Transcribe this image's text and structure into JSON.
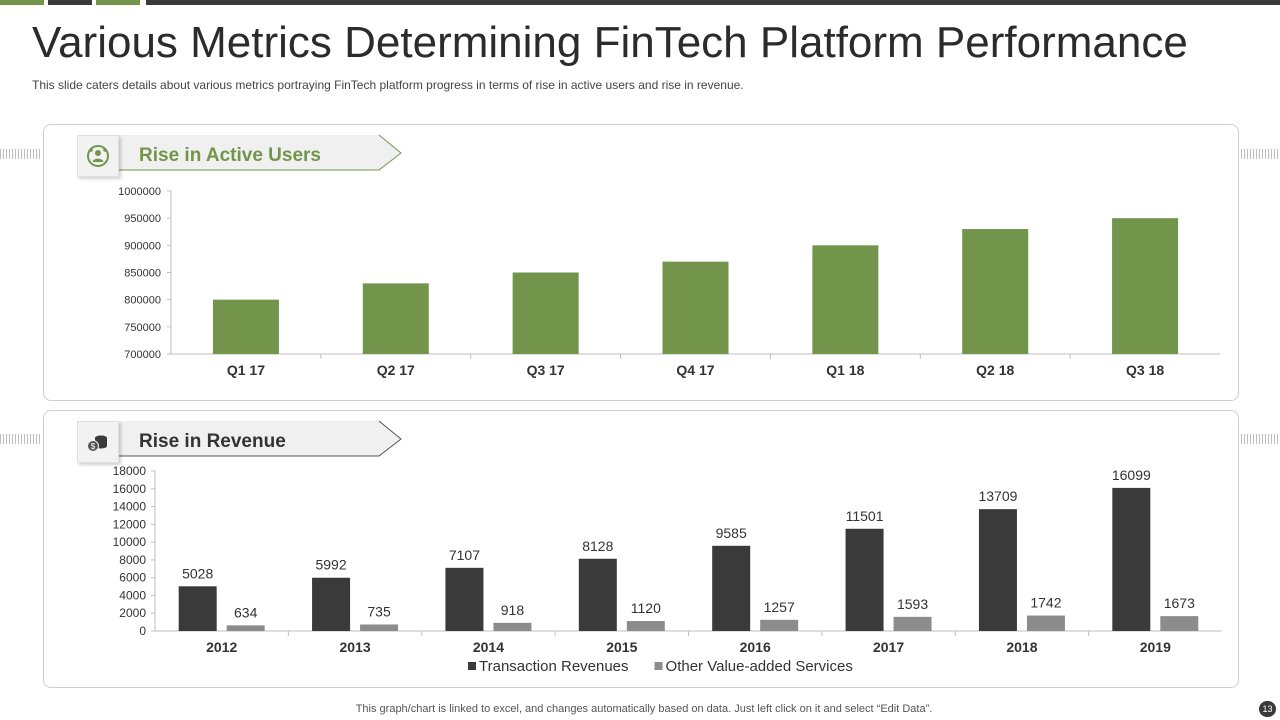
{
  "title": "Various Metrics Determining FinTech Platform Performance",
  "subtitle": "This slide caters details about various  metrics portraying FinTech platform progress  in terms of rise in active users and rise in revenue.",
  "footer": "This graph/chart is linked to excel,  and changes automatically based on data. Just left click on it and select “Edit Data”.",
  "page_number": "13",
  "colors": {
    "green": "#72954b",
    "dark": "#3a3a3a",
    "gray": "#8c8c8c",
    "green_text": "#72954b"
  },
  "sections": {
    "users": {
      "label": "Rise in Active Users",
      "icon": "user-network-icon"
    },
    "revenue": {
      "label": "Rise in Revenue",
      "icon": "money-coins-icon"
    }
  },
  "chart_data": [
    {
      "type": "bar",
      "title": "Rise in Active Users",
      "categories": [
        "Q1 17",
        "Q2 17",
        "Q3 17",
        "Q4 17",
        "Q1 18",
        "Q2 18",
        "Q3 18"
      ],
      "values": [
        800000,
        830000,
        850000,
        870000,
        900000,
        930000,
        950000
      ],
      "ylim": [
        700000,
        1000000
      ],
      "yticks": [
        700000,
        750000,
        800000,
        850000,
        900000,
        950000,
        1000000
      ],
      "xlabel": "",
      "ylabel": ""
    },
    {
      "type": "bar",
      "title": "Rise in Revenue",
      "categories": [
        "2012",
        "2013",
        "2014",
        "2015",
        "2016",
        "2017",
        "2018",
        "2019"
      ],
      "series": [
        {
          "name": "Transaction Revenues",
          "values": [
            5028,
            5992,
            7107,
            8128,
            9585,
            11501,
            13709,
            16099
          ]
        },
        {
          "name": "Other Value-added Services",
          "values": [
            634,
            735,
            918,
            1120,
            1257,
            1593,
            1742,
            1673
          ]
        }
      ],
      "ylim": [
        0,
        18000
      ],
      "yticks": [
        0,
        2000,
        4000,
        6000,
        8000,
        10000,
        12000,
        14000,
        16000,
        18000
      ],
      "legend": "bottom",
      "xlabel": "",
      "ylabel": ""
    }
  ]
}
